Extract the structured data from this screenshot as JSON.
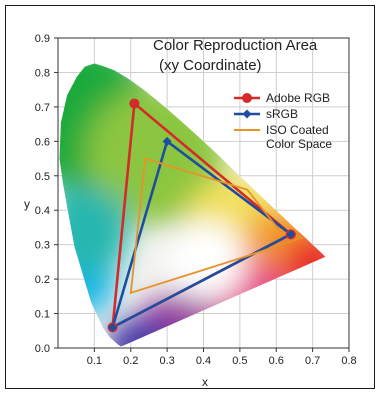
{
  "chart_data": {
    "type": "scatter",
    "title_lines": [
      "Color Reproduction Area",
      "(xy Coordinate)"
    ],
    "xlabel": "x",
    "ylabel": "y",
    "xlim": [
      0.0,
      0.8
    ],
    "ylim": [
      0.0,
      0.9
    ],
    "x_ticks": [
      "0.1",
      "0.2",
      "0.3",
      "0.4",
      "0.5",
      "0.6",
      "0.7",
      "0.8"
    ],
    "y_ticks": [
      "0.0",
      "0.1",
      "0.2",
      "0.3",
      "0.4",
      "0.5",
      "0.6",
      "0.7",
      "0.8",
      "0.9"
    ],
    "grid": true,
    "legend_position": "top-right",
    "spectral_locus": [
      [
        0.175,
        0.005
      ],
      [
        0.172,
        0.005
      ],
      [
        0.166,
        0.009
      ],
      [
        0.156,
        0.018
      ],
      [
        0.144,
        0.03
      ],
      [
        0.124,
        0.058
      ],
      [
        0.091,
        0.133
      ],
      [
        0.045,
        0.295
      ],
      [
        0.014,
        0.475
      ],
      [
        0.004,
        0.55
      ],
      [
        0.008,
        0.654
      ],
      [
        0.025,
        0.734
      ],
      [
        0.052,
        0.788
      ],
      [
        0.074,
        0.817
      ],
      [
        0.1,
        0.826
      ],
      [
        0.125,
        0.818
      ],
      [
        0.155,
        0.806
      ],
      [
        0.193,
        0.782
      ],
      [
        0.23,
        0.754
      ],
      [
        0.266,
        0.724
      ],
      [
        0.302,
        0.692
      ],
      [
        0.338,
        0.659
      ],
      [
        0.374,
        0.625
      ],
      [
        0.41,
        0.59
      ],
      [
        0.445,
        0.555
      ],
      [
        0.479,
        0.52
      ],
      [
        0.512,
        0.487
      ],
      [
        0.545,
        0.454
      ],
      [
        0.575,
        0.424
      ],
      [
        0.603,
        0.396
      ],
      [
        0.627,
        0.372
      ],
      [
        0.648,
        0.351
      ],
      [
        0.666,
        0.334
      ],
      [
        0.68,
        0.32
      ],
      [
        0.692,
        0.308
      ],
      [
        0.701,
        0.299
      ],
      [
        0.735,
        0.265
      ]
    ],
    "series": [
      {
        "name": "Adobe RGB",
        "marker": "circle",
        "color": "#d42a2a",
        "points": [
          [
            0.64,
            0.33
          ],
          [
            0.21,
            0.71
          ],
          [
            0.15,
            0.06
          ]
        ]
      },
      {
        "name": "sRGB",
        "marker": "diamond",
        "color": "#1f4e9e",
        "points": [
          [
            0.64,
            0.33
          ],
          [
            0.3,
            0.6
          ],
          [
            0.15,
            0.06
          ]
        ]
      },
      {
        "name": "ISO Coated Color Space",
        "legend_lines": [
          "ISO Coated",
          "Color Space"
        ],
        "marker": "none",
        "color": "#e8922a",
        "points": [
          [
            0.24,
            0.55
          ],
          [
            0.52,
            0.46
          ],
          [
            0.61,
            0.34
          ],
          [
            0.67,
            0.32
          ],
          [
            0.5,
            0.26
          ],
          [
            0.2,
            0.16
          ]
        ]
      }
    ]
  }
}
